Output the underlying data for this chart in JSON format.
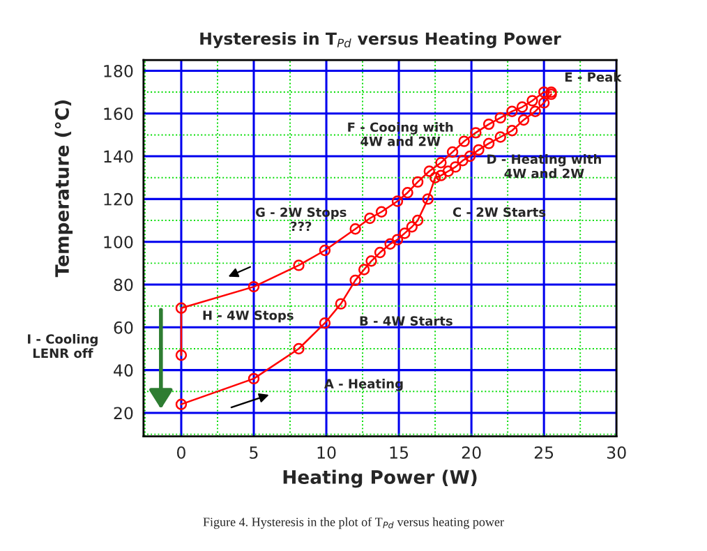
{
  "chart_data": {
    "type": "line",
    "title": "Hysteresis in T$_{Pd}$ versus Heating Power",
    "xlabel": "Heating Power (W)",
    "ylabel": "Temperature (°C)",
    "xlim": [
      -2.6,
      30
    ],
    "ylim": [
      9,
      185
    ],
    "xticks": [
      {
        "value": -2.5,
        "label": null
      },
      0,
      {
        "value": 2.5,
        "label": null
      },
      5,
      {
        "value": 7.5,
        "label": null
      },
      10,
      {
        "value": 12.5,
        "label": null
      },
      15,
      {
        "value": 17.5,
        "label": null
      },
      20,
      {
        "value": 22.5,
        "label": null
      },
      25,
      {
        "value": 27.5,
        "label": null
      },
      30
    ],
    "yticks": [
      {
        "value": 10,
        "label": null
      },
      20,
      {
        "value": 30,
        "label": null
      },
      40,
      {
        "value": 50,
        "label": null
      },
      60,
      {
        "value": 70,
        "label": null
      },
      80,
      {
        "value": 90,
        "label": null
      },
      100,
      {
        "value": 110,
        "label": null
      },
      120,
      {
        "value": 130,
        "label": null
      },
      140,
      {
        "value": 150,
        "label": null
      },
      160,
      {
        "value": 170,
        "label": null
      },
      180
    ],
    "grid": true,
    "marker": "circle",
    "line_style": "solid",
    "series": [
      {
        "color": "#ff0000",
        "x": [
          0,
          5,
          8.1,
          9.9,
          11,
          12,
          12.6,
          13.1,
          13.7,
          14.4,
          14.9,
          15.4,
          15.9,
          16.3,
          17,
          17.5,
          17.9,
          18.4,
          18.9,
          19.4,
          19.9,
          20.5,
          21.2,
          22,
          22.8,
          23.6,
          24.4,
          25,
          25.5
        ],
        "values": [
          24,
          36,
          50,
          62,
          71,
          82,
          87,
          91,
          95,
          99,
          101,
          104,
          107,
          110,
          120,
          130,
          131,
          133,
          135,
          138,
          140,
          143,
          146,
          149,
          152,
          157,
          161,
          165,
          169
        ]
      },
      {
        "color": "#ff0000",
        "x": [
          25.5,
          25,
          24.2,
          23.5,
          22.8,
          22,
          21.2,
          20.3,
          19.5,
          18.7,
          17.9,
          17.1,
          16.3,
          15.6,
          14.9,
          13.8,
          13,
          12,
          9.9,
          8.1,
          5,
          0,
          0
        ],
        "values": [
          170,
          170,
          166,
          163,
          161,
          158,
          155,
          151,
          147,
          142,
          137,
          133,
          128,
          123,
          119,
          114,
          111,
          106,
          96,
          89,
          79,
          69,
          47
        ]
      }
    ],
    "annotations": [
      "E - Peak",
      "F - Cooing with\n4W and 2W",
      "D - Heating with\n4W and 2W",
      "C - 2W Starts",
      "G - 2W Stops\n???",
      "B - 4W Starts",
      "H - 4W Stops",
      "A - Heating",
      "I - Cooling\nLENR off",
      "Figure 4. Hysteresis in the plot of T$_{Pd}$ versus heating power"
    ]
  }
}
